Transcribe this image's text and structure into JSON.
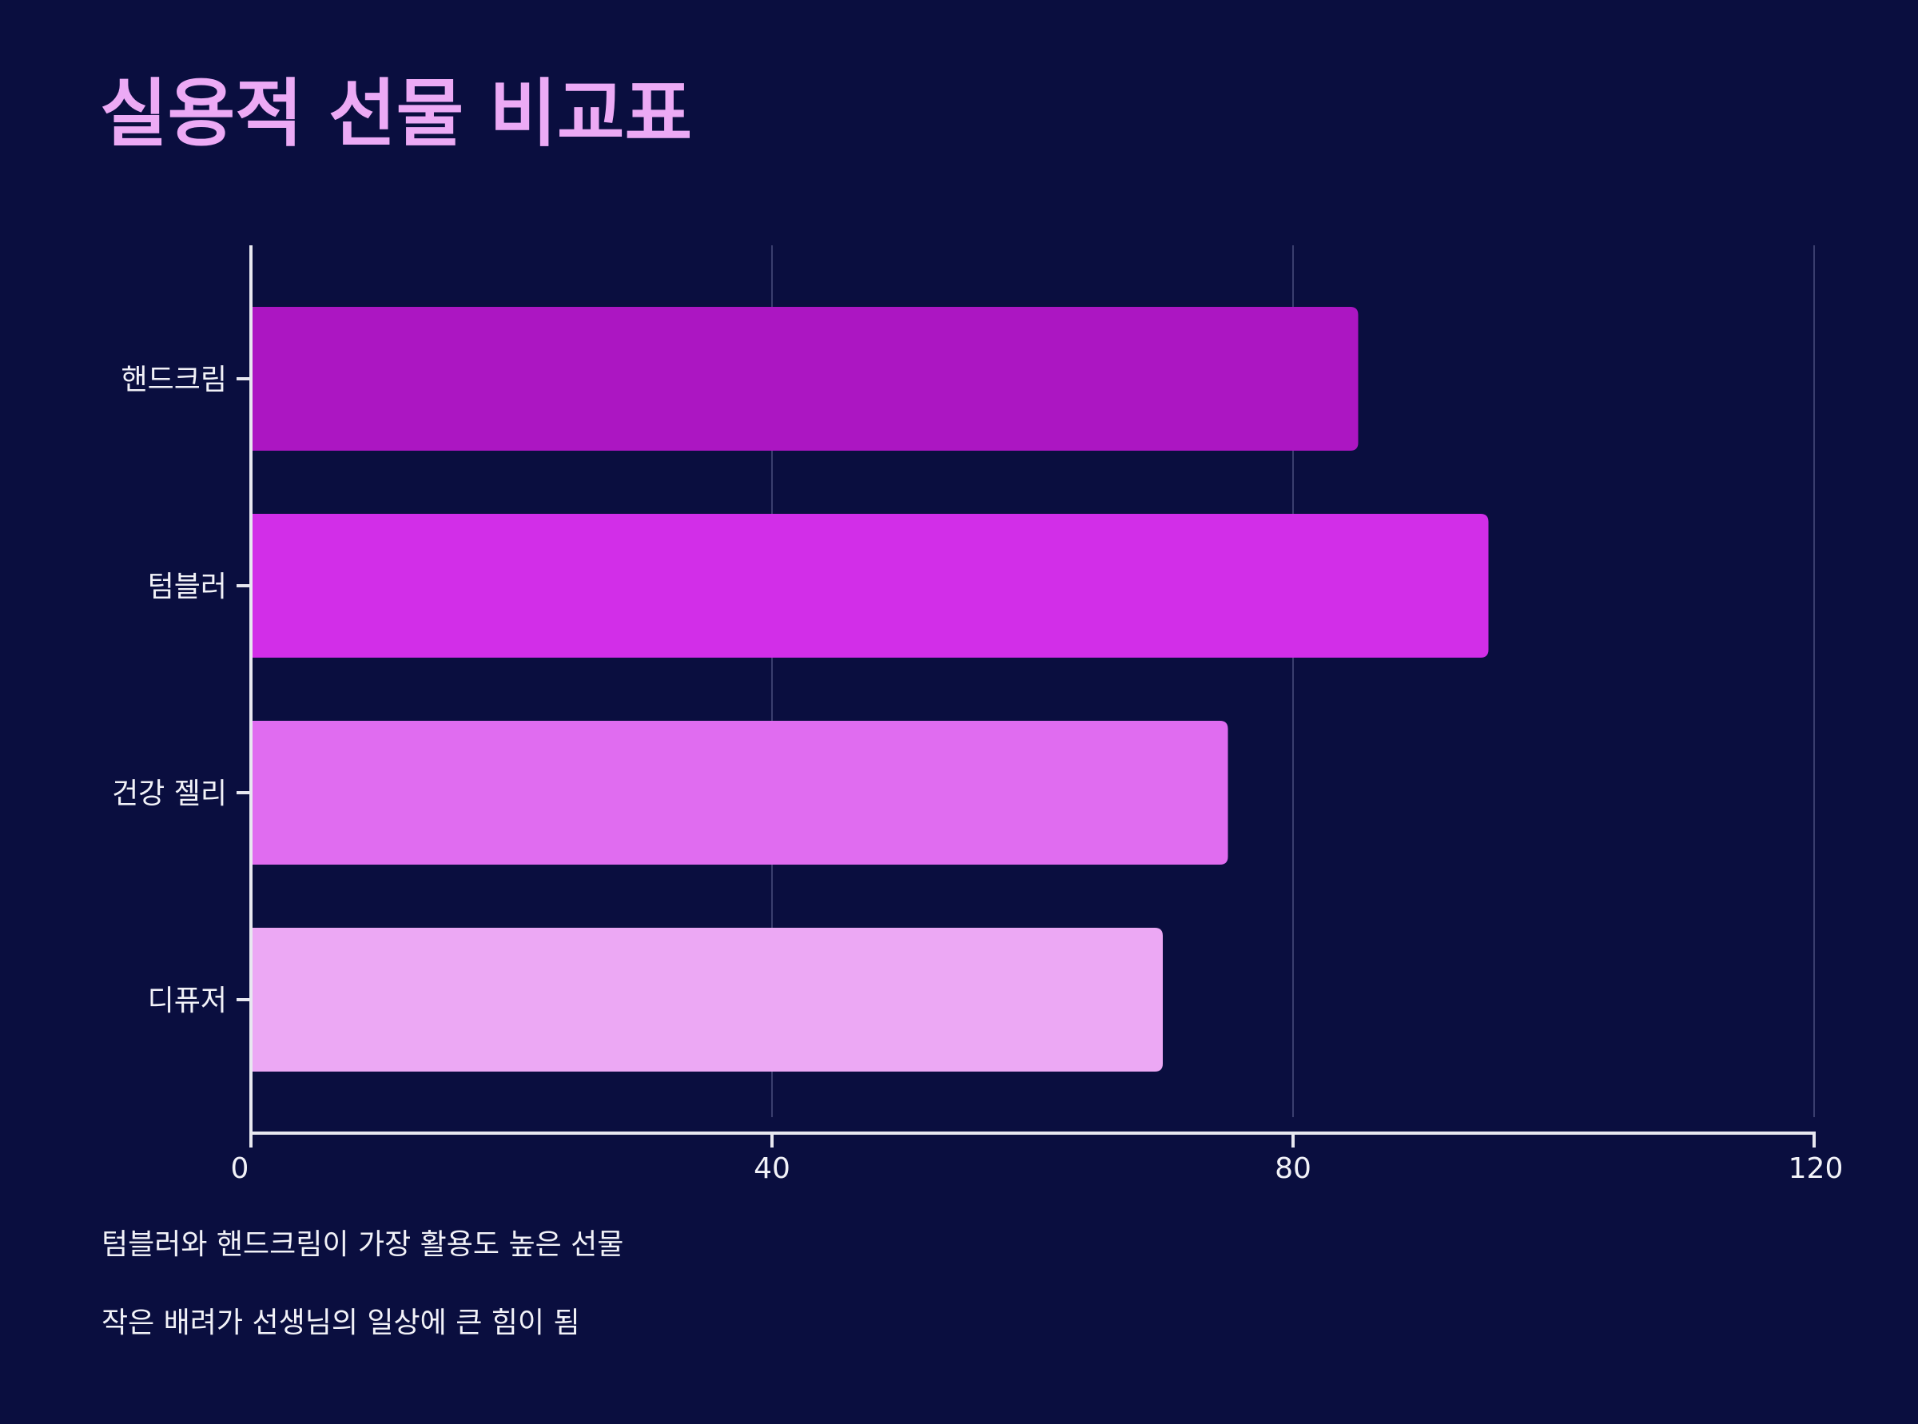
{
  "title": "실용적 선물 비교표",
  "notes": [
    "텀블러와 핸드크림이 가장 활용도 높은 선물",
    "작은 배려가 선생님의 일상에 큰 힘이 됨"
  ],
  "colors": {
    "background": "#0a0e3f",
    "title": "#ecaaf5",
    "axis": "#e8e8f0",
    "grid": "#3a3e6e",
    "text": "#f2f2f8"
  },
  "chart_data": {
    "type": "bar",
    "orientation": "horizontal",
    "categories": [
      "핸드크림",
      "텀블러",
      "건강 젤리",
      "디퓨저"
    ],
    "values": [
      85,
      95,
      75,
      70
    ],
    "bar_colors": [
      "#ac16c2",
      "#d22ee8",
      "#e06cf0",
      "#eca8f4"
    ],
    "xlim": [
      0,
      120
    ],
    "xticks": [
      0,
      40,
      80,
      120
    ],
    "grid": "vertical",
    "title": "실용적 선물 비교표",
    "xlabel": "",
    "ylabel": ""
  }
}
